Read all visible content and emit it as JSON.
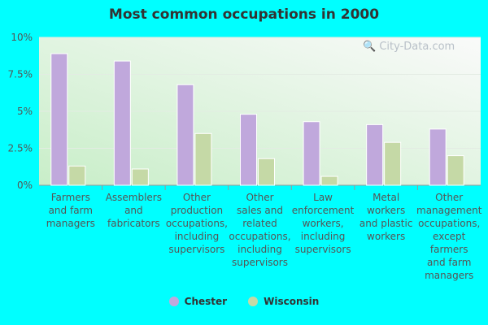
{
  "chart_data": {
    "type": "bar",
    "title": "Most common occupations in 2000",
    "categories": [
      [
        "Farmers",
        "and farm",
        "managers"
      ],
      [
        "Assemblers",
        "and",
        "fabricators"
      ],
      [
        "Other",
        "production",
        "occupations,",
        "including",
        "supervisors"
      ],
      [
        "Other",
        "sales and",
        "related",
        "occupations,",
        "including",
        "supervisors"
      ],
      [
        "Law",
        "enforcement",
        "workers,",
        "including",
        "supervisors"
      ],
      [
        "Metal",
        "workers",
        "and plastic",
        "workers"
      ],
      [
        "Other",
        "management",
        "occupations,",
        "except",
        "farmers",
        "and farm",
        "managers"
      ]
    ],
    "series": [
      {
        "name": "Chester",
        "color": "#c0a8dc",
        "values": [
          8.9,
          8.4,
          6.8,
          4.8,
          4.3,
          4.1,
          3.8
        ]
      },
      {
        "name": "Wisconsin",
        "color": "#c5d9a6",
        "values": [
          1.3,
          1.1,
          3.5,
          1.8,
          0.6,
          2.9,
          2.0
        ]
      }
    ],
    "y_ticks": [
      "0%",
      "2.5%",
      "5%",
      "7.5%",
      "10%"
    ],
    "ylim": [
      0,
      10
    ],
    "xlabel": "",
    "ylabel": "",
    "legend_position": "bottom-center"
  },
  "watermark_text": "City-Data.com"
}
